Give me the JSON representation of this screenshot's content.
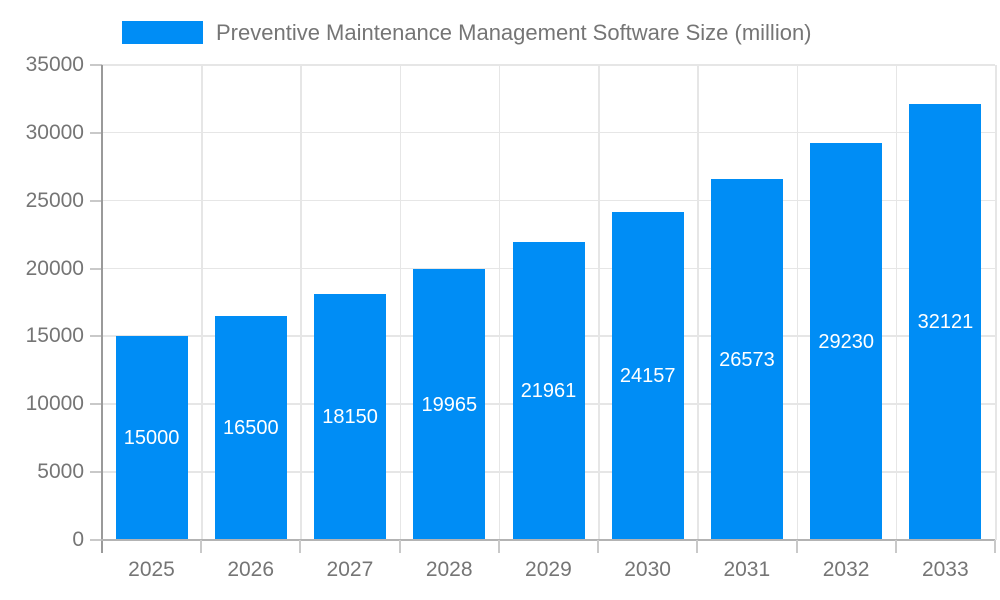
{
  "legend": {
    "label": "Preventive Maintenance Management Software Size (million)"
  },
  "chart_data": {
    "type": "bar",
    "title": "Preventive Maintenance Management Software Size (million)",
    "categories": [
      "2025",
      "2026",
      "2027",
      "2028",
      "2029",
      "2030",
      "2031",
      "2032",
      "2033"
    ],
    "values": [
      15000,
      16500,
      18150,
      19965,
      21961,
      24157,
      26573,
      29230,
      32121
    ],
    "xlabel": "",
    "ylabel": "",
    "ylim": [
      0,
      35000
    ],
    "ytick_step": 5000,
    "ytick_labels": [
      "0",
      "5000",
      "10000",
      "15000",
      "20000",
      "25000",
      "30000",
      "35000"
    ],
    "grid": true,
    "legend_position": "top",
    "bar_labels_inside_centered": true,
    "colors": {
      "bar": "#008df5",
      "bar_label_text": "#ffffff",
      "axis_text": "#757575",
      "legend_text": "#757575",
      "gridline": "#e6e6e6",
      "axis_line": "#9a9a9a",
      "baseline": "#b3b3b3",
      "tick": "#c9c9c9",
      "background": "#ffffff"
    }
  }
}
